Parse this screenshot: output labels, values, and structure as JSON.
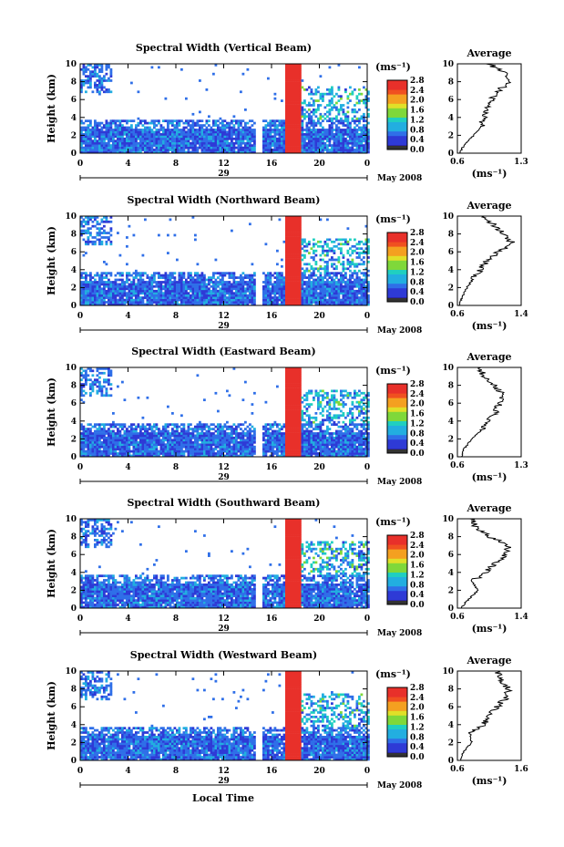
{
  "figure": {
    "date_label": "May 2008",
    "day_label": "29",
    "xlabel": "Local Time",
    "x_ticks": [
      "0",
      "4",
      "8",
      "12",
      "16",
      "20",
      "0"
    ],
    "height_label": "Height (km)",
    "height_ticks": [
      "0",
      "2",
      "4",
      "6",
      "8",
      "10"
    ],
    "colorbar_unit": "(ms⁻¹)",
    "colorbar_ticks": [
      "0.0",
      "0.4",
      "0.8",
      "1.2",
      "1.6",
      "2.0",
      "2.4",
      "2.8"
    ],
    "average_title": "Average",
    "average_unit": "(ms⁻¹)",
    "colors": {
      "scale": [
        "#2b1a8a",
        "#2e3ad6",
        "#2f6fe8",
        "#22aee0",
        "#20cfc0",
        "#7fd83a",
        "#e0e028",
        "#f4a020",
        "#f05020",
        "#e8302a"
      ]
    }
  },
  "chart_data": [
    {
      "type": "heatmap",
      "title": "Spectral Width (Vertical Beam)",
      "xlabel": "Local Time",
      "ylabel": "Height (km)",
      "xlim": [
        0,
        24
      ],
      "ylim": [
        0,
        10
      ],
      "clim": [
        0.0,
        2.8
      ],
      "average": {
        "title": "Average",
        "xlabel": "(ms⁻¹)",
        "xlim": [
          0.6,
          1.3
        ],
        "xticks": [
          "0.6",
          "1.3"
        ],
        "heights": [
          0,
          1,
          2,
          3,
          4,
          5,
          6,
          7,
          8,
          9,
          10
        ],
        "values": [
          0.62,
          0.68,
          0.78,
          0.86,
          0.9,
          0.92,
          0.98,
          1.05,
          1.18,
          1.1,
          0.95
        ]
      }
    },
    {
      "type": "heatmap",
      "title": "Spectral Width (Northward Beam)",
      "xlabel": "Local Time",
      "ylabel": "Height (km)",
      "xlim": [
        0,
        24
      ],
      "ylim": [
        0,
        10
      ],
      "clim": [
        0.0,
        2.8
      ],
      "average": {
        "title": "Average",
        "xlabel": "(ms⁻¹)",
        "xlim": [
          0.6,
          1.4
        ],
        "xticks": [
          "0.6",
          "1.4"
        ],
        "heights": [
          0,
          1,
          2,
          3,
          4,
          5,
          6,
          7,
          8,
          9,
          10
        ],
        "values": [
          0.62,
          0.66,
          0.72,
          0.8,
          0.88,
          0.98,
          1.12,
          1.28,
          1.2,
          1.05,
          0.92
        ]
      }
    },
    {
      "type": "heatmap",
      "title": "Spectral Width (Eastward Beam)",
      "xlabel": "Local Time",
      "ylabel": "Height (km)",
      "xlim": [
        0,
        24
      ],
      "ylim": [
        0,
        10
      ],
      "clim": [
        0.0,
        2.8
      ],
      "average": {
        "title": "Average",
        "xlabel": "(ms⁻¹)",
        "xlim": [
          0.6,
          1.3
        ],
        "xticks": [
          "0.6",
          "1.3"
        ],
        "heights": [
          0,
          1,
          2,
          3,
          4,
          5,
          6,
          7,
          8,
          9,
          10
        ],
        "values": [
          0.64,
          0.68,
          0.76,
          0.86,
          0.92,
          1.02,
          1.06,
          1.1,
          1.0,
          0.9,
          0.82
        ]
      }
    },
    {
      "type": "heatmap",
      "title": "Spectral Width (Southward Beam)",
      "xlabel": "Local Time",
      "ylabel": "Height (km)",
      "xlim": [
        0,
        24
      ],
      "ylim": [
        0,
        10
      ],
      "clim": [
        0.0,
        2.8
      ],
      "average": {
        "title": "Average",
        "xlabel": "(ms⁻¹)",
        "xlim": [
          0.6,
          1.4
        ],
        "xticks": [
          "0.6",
          "1.4"
        ],
        "heights": [
          0,
          1,
          2,
          3,
          4,
          5,
          6,
          7,
          8,
          9,
          10
        ],
        "values": [
          0.64,
          0.74,
          0.86,
          0.78,
          0.96,
          1.08,
          1.2,
          1.24,
          1.0,
          0.82,
          0.8
        ]
      }
    },
    {
      "type": "heatmap",
      "title": "Spectral Width (Westward Beam)",
      "xlabel": "Local Time",
      "ylabel": "Height (km)",
      "xlim": [
        0,
        24
      ],
      "ylim": [
        0,
        10
      ],
      "clim": [
        0.0,
        2.8
      ],
      "average": {
        "title": "Average",
        "xlabel": "(ms⁻¹)",
        "xlim": [
          0.6,
          1.6
        ],
        "xticks": [
          "0.6",
          "1.6"
        ],
        "heights": [
          0,
          1,
          2,
          3,
          4,
          5,
          6,
          7,
          8,
          9,
          10
        ],
        "values": [
          0.64,
          0.7,
          0.82,
          0.8,
          1.0,
          1.1,
          1.22,
          1.36,
          1.4,
          1.3,
          1.2
        ]
      }
    }
  ]
}
